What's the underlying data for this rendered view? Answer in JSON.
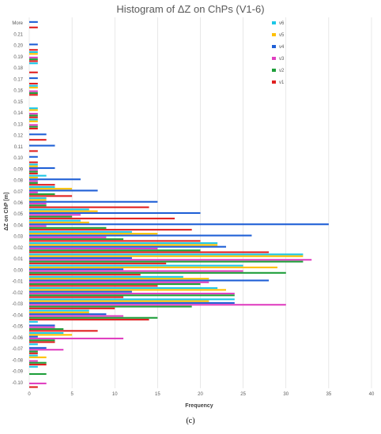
{
  "caption": "(c)",
  "chart_data": {
    "type": "bar",
    "orientation": "horizontal",
    "title": "Histogram of ΔZ on ChPs (V1-6)",
    "xlabel": "Frequency",
    "ylabel": "ΔZ on ChP [m]",
    "xlim": [
      0,
      40
    ],
    "xticks": [
      0,
      5,
      10,
      15,
      20,
      25,
      30,
      35,
      40
    ],
    "grid": true,
    "legend_position": "top-right",
    "categories": [
      "More",
      "0.21",
      "0.20",
      "0.19",
      "0.18",
      "0.17",
      "0.16",
      "0.15",
      "0.14",
      "0.13",
      "0.12",
      "0.11",
      "0.10",
      "0.09",
      "0.08",
      "0.07",
      "0.06",
      "0.05",
      "0.04",
      "0.03",
      "0.02",
      "0.01",
      "0.00",
      "-0.01",
      "-0.02",
      "-0.03",
      "-0.04",
      "-0.05",
      "-0.06",
      "-0.07",
      "-0.08",
      "-0.09",
      "-0.10"
    ],
    "series": [
      {
        "name": "v6",
        "color": "#1CC7E6",
        "values": [
          0,
          0,
          0,
          1,
          1,
          0,
          1,
          0,
          1,
          1,
          0,
          0,
          0,
          1,
          2,
          3,
          2,
          7,
          6,
          12,
          22,
          32,
          25,
          18,
          22,
          24,
          7,
          1,
          4,
          1,
          1,
          1,
          0
        ]
      },
      {
        "name": "v5",
        "color": "#FFC000",
        "values": [
          0,
          0,
          0,
          1,
          0,
          0,
          1,
          0,
          1,
          1,
          0,
          0,
          0,
          1,
          1,
          5,
          2,
          8,
          7,
          15,
          22,
          32,
          29,
          21,
          23,
          21,
          7,
          0,
          5,
          0,
          2,
          0,
          0
        ]
      },
      {
        "name": "v4",
        "color": "#1F5FD6",
        "values": [
          1,
          0,
          1,
          0,
          0,
          1,
          0,
          0,
          0,
          0,
          2,
          3,
          1,
          3,
          6,
          8,
          15,
          20,
          35,
          26,
          23,
          12,
          11,
          28,
          12,
          24,
          9,
          3,
          1,
          2,
          0,
          0,
          0
        ]
      },
      {
        "name": "v3",
        "color": "#E040C0",
        "values": [
          0,
          0,
          0,
          1,
          0,
          0,
          1,
          0,
          1,
          1,
          0,
          0,
          0,
          1,
          1,
          1,
          2,
          6,
          2,
          9,
          15,
          33,
          25,
          21,
          24,
          30,
          11,
          3,
          11,
          4,
          1,
          0,
          2
        ]
      },
      {
        "name": "v2",
        "color": "#1E9E3A",
        "values": [
          0,
          0,
          0,
          1,
          0,
          0,
          1,
          0,
          1,
          1,
          0,
          0,
          0,
          1,
          1,
          3,
          2,
          5,
          9,
          11,
          20,
          32,
          30,
          20,
          24,
          19,
          15,
          4,
          3,
          1,
          2,
          2,
          0
        ]
      },
      {
        "name": "v1",
        "color": "#E02020",
        "values": [
          1,
          0,
          1,
          1,
          1,
          1,
          1,
          0,
          1,
          1,
          2,
          1,
          1,
          1,
          3,
          5,
          14,
          17,
          19,
          20,
          28,
          16,
          13,
          15,
          11,
          10,
          14,
          8,
          3,
          1,
          2,
          0,
          1
        ]
      }
    ]
  }
}
